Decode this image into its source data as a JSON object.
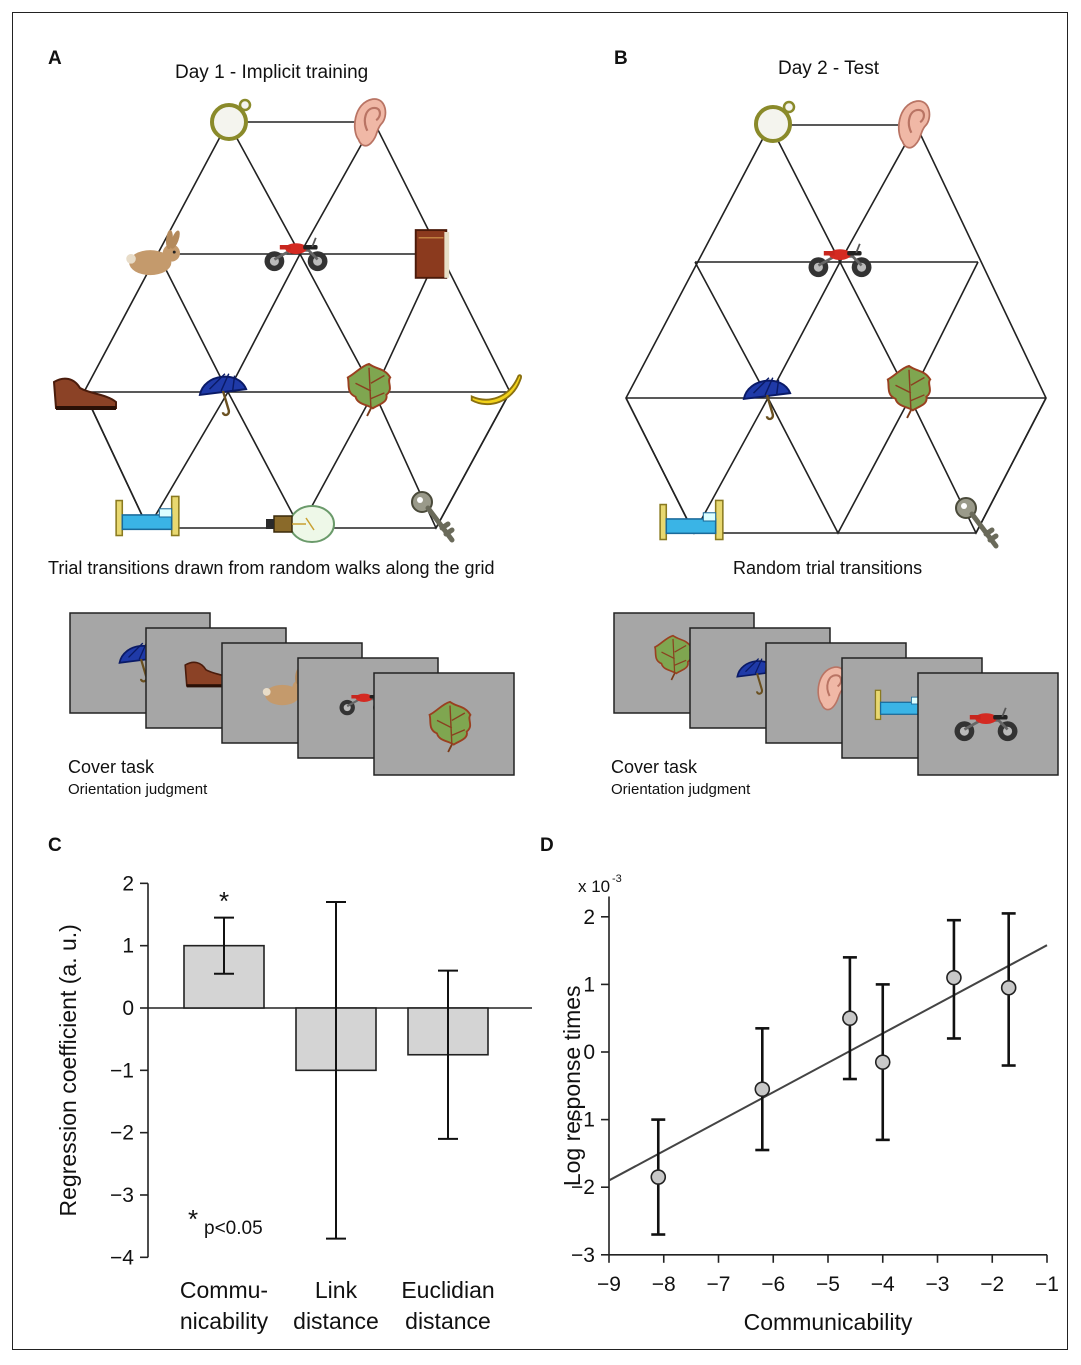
{
  "panels": {
    "a": {
      "letter": "A",
      "title": "Day 1 - Implicit training",
      "caption": "Trial transitions drawn from random walks along the grid",
      "cover_task": "Cover task",
      "cover_sub": "Orientation judgment"
    },
    "b": {
      "letter": "B",
      "title": "Day 2 - Test",
      "caption": "Random trial transitions",
      "cover_task": "Cover task",
      "cover_sub": "Orientation judgment"
    },
    "c": {
      "letter": "C"
    },
    "d": {
      "letter": "D"
    }
  },
  "icons": {
    "grid_a": [
      "magnifier",
      "ear",
      "rabbit",
      "motorcycle",
      "book",
      "shoe",
      "umbrella",
      "leaf",
      "banana",
      "bed",
      "lightbulb",
      "key"
    ],
    "grid_b": [
      "magnifier",
      "ear",
      "motorcycle",
      "umbrella",
      "leaf",
      "bed",
      "key"
    ],
    "cards_a": [
      "umbrella",
      "shoe",
      "rabbit",
      "motorcycle",
      "leaf"
    ],
    "cards_b": [
      "leaf",
      "umbrella",
      "ear",
      "bed",
      "motorcycle"
    ]
  },
  "colors": {
    "bar_fill": "#d4d4d4",
    "card_gray": "#a6a6a6",
    "point_fill": "#c8c8c8"
  },
  "chart_data": [
    {
      "type": "bar",
      "categories": [
        "Commu-\nnicability",
        "Link\ndistance",
        "Euclidian\ndistance"
      ],
      "values": [
        1.0,
        -1.0,
        -0.75
      ],
      "errors": [
        [
          0.55,
          1.45
        ],
        [
          -3.7,
          1.7
        ],
        [
          -2.1,
          0.6
        ]
      ],
      "ylabel": "Regression coefficient (a. u.)",
      "ylim": [
        -4,
        2
      ],
      "yticks": [
        "2",
        "1",
        "0",
        "−1",
        "−2",
        "−3",
        "−4"
      ],
      "significance_marker": "*",
      "legend_note": "p<0.05"
    },
    {
      "type": "scatter",
      "x": [
        -8.1,
        -6.2,
        -4.6,
        -4.0,
        -2.7,
        -1.7
      ],
      "y": [
        -1.85,
        -0.55,
        0.5,
        -0.15,
        1.1,
        0.95
      ],
      "y_err_low": [
        -2.7,
        -1.45,
        -0.4,
        -1.3,
        0.2,
        -0.2
      ],
      "y_err_high": [
        -1.0,
        0.35,
        1.4,
        1.0,
        1.95,
        2.05
      ],
      "fit_line": {
        "x": [
          -9,
          -1
        ],
        "y": [
          -1.9,
          1.58
        ]
      },
      "xlabel": "Communicability",
      "ylabel": "Log response times",
      "y_multiplier": "x 10",
      "y_multiplier_exp": "-3",
      "xlim": [
        -9,
        -1
      ],
      "ylim": [
        -3,
        2.3
      ],
      "xticks": [
        "−9",
        "−8",
        "−7",
        "−6",
        "−5",
        "−4",
        "−3",
        "−2",
        "−1"
      ],
      "yticks": [
        "2",
        "1",
        "0",
        "−1",
        "−2",
        "−3"
      ]
    }
  ]
}
